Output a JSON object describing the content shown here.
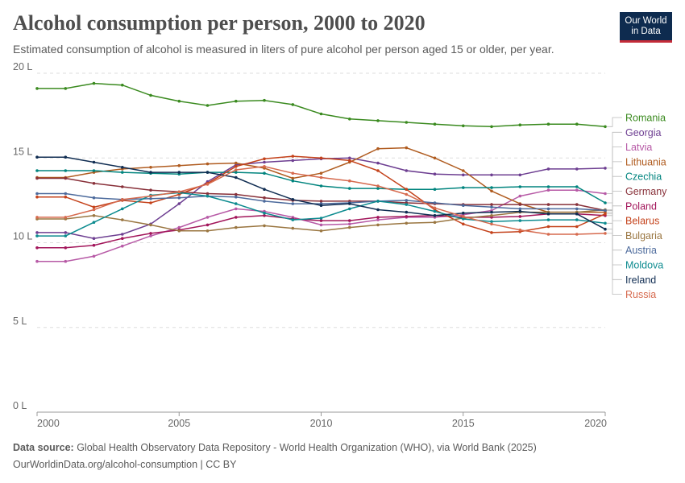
{
  "header": {
    "title": "Alcohol consumption per person, 2000 to 2020",
    "subtitle": "Estimated consumption of alcohol is measured in liters of pure alcohol per person aged 15 or older, per year.",
    "logo_line1": "Our World",
    "logo_line2": "in Data"
  },
  "footer": {
    "source_label": "Data source:",
    "source_text": " Global Health Observatory Data Repository - World Health Organization (WHO), via World Bank (2025)",
    "credit": "OurWorldinData.org/alcohol-consumption | CC BY"
  },
  "colors": {
    "accent": "#c42b39",
    "brand": "#0e2b4f",
    "grid": "#dddddd",
    "axis": "#666666"
  },
  "chart_data": {
    "type": "line",
    "title": "Alcohol consumption per person, 2000 to 2020",
    "ylim": [
      0,
      20
    ],
    "xlim": [
      2000,
      2020
    ],
    "x_ticks": [
      2000,
      2005,
      2010,
      2015,
      2020
    ],
    "y_ticks": [
      {
        "value": 0,
        "label": "0 L"
      },
      {
        "value": 5,
        "label": "5 L"
      },
      {
        "value": 10,
        "label": "10 L"
      },
      {
        "value": 15,
        "label": "15 L"
      },
      {
        "value": 20,
        "label": "20 L"
      }
    ],
    "grid": "horizontal-dashed",
    "legend_placement": "right",
    "x": [
      2000,
      2001,
      2002,
      2003,
      2004,
      2005,
      2006,
      2007,
      2008,
      2009,
      2010,
      2011,
      2012,
      2013,
      2014,
      2015,
      2016,
      2017,
      2018,
      2019,
      2020
    ],
    "series": [
      {
        "name": "Romania",
        "color": "#3a8a1f",
        "values": [
          19.1,
          19.1,
          19.4,
          19.3,
          18.7,
          18.35,
          18.1,
          18.35,
          18.4,
          18.15,
          17.6,
          17.3,
          17.2,
          17.1,
          17.0,
          16.9,
          16.85,
          16.95,
          17.0,
          17.0,
          16.85
        ]
      },
      {
        "name": "Georgia",
        "color": "#6d3e91",
        "values": [
          10.6,
          10.6,
          10.25,
          10.5,
          11.1,
          12.3,
          13.6,
          14.6,
          14.75,
          14.85,
          14.95,
          15.0,
          14.7,
          14.25,
          14.05,
          14.0,
          14.0,
          14.0,
          14.35,
          14.35,
          14.4
        ]
      },
      {
        "name": "Latvia",
        "color": "#b75aa6",
        "values": [
          8.9,
          8.9,
          9.2,
          9.8,
          10.4,
          10.9,
          11.5,
          12.0,
          11.85,
          11.5,
          11.05,
          11.1,
          11.35,
          11.5,
          11.5,
          11.65,
          11.9,
          12.75,
          13.1,
          13.1,
          12.9
        ]
      },
      {
        "name": "Lithuania",
        "color": "#b05c20",
        "values": [
          13.85,
          13.85,
          14.15,
          14.35,
          14.45,
          14.55,
          14.65,
          14.7,
          14.4,
          13.8,
          14.1,
          14.75,
          15.55,
          15.6,
          15.0,
          14.25,
          13.05,
          12.3,
          11.8,
          11.8,
          11.8
        ]
      },
      {
        "name": "Czechia",
        "color": "#00847e",
        "values": [
          14.25,
          14.25,
          14.25,
          14.15,
          14.1,
          14.05,
          14.15,
          14.15,
          14.1,
          13.65,
          13.35,
          13.2,
          13.2,
          13.15,
          13.15,
          13.25,
          13.25,
          13.3,
          13.3,
          13.3,
          12.35
        ]
      },
      {
        "name": "Germany",
        "color": "#883039",
        "values": [
          13.8,
          13.8,
          13.5,
          13.3,
          13.1,
          13.0,
          12.9,
          12.85,
          12.65,
          12.5,
          12.45,
          12.45,
          12.45,
          12.35,
          12.3,
          12.25,
          12.25,
          12.25,
          12.25,
          12.25,
          11.9
        ]
      },
      {
        "name": "Poland",
        "color": "#a2155a",
        "values": [
          9.7,
          9.7,
          9.85,
          10.25,
          10.55,
          10.75,
          11.05,
          11.5,
          11.6,
          11.4,
          11.3,
          11.3,
          11.5,
          11.55,
          11.6,
          11.5,
          11.5,
          11.55,
          11.7,
          11.7,
          11.6
        ]
      },
      {
        "name": "Belarus",
        "color": "#c4421b",
        "values": [
          12.7,
          12.7,
          12.1,
          12.5,
          12.35,
          12.85,
          13.5,
          14.5,
          14.95,
          15.1,
          15.0,
          14.85,
          14.25,
          13.15,
          11.95,
          11.1,
          10.6,
          10.65,
          10.95,
          10.95,
          11.7
        ]
      },
      {
        "name": "Bulgaria",
        "color": "#9a7641",
        "values": [
          11.4,
          11.4,
          11.6,
          11.35,
          11.05,
          10.7,
          10.7,
          10.9,
          11.0,
          10.85,
          10.7,
          10.9,
          11.05,
          11.15,
          11.2,
          11.45,
          11.6,
          11.8,
          11.8,
          11.8,
          11.95
        ]
      },
      {
        "name": "Austria",
        "color": "#4c6a9c",
        "values": [
          12.9,
          12.9,
          12.65,
          12.55,
          12.6,
          12.65,
          12.75,
          12.7,
          12.45,
          12.3,
          12.3,
          12.35,
          12.45,
          12.5,
          12.35,
          12.2,
          12.1,
          12.0,
          12.0,
          12.0,
          11.9
        ]
      },
      {
        "name": "Moldova",
        "color": "#0c8b8f",
        "values": [
          10.4,
          10.4,
          11.2,
          12.0,
          12.8,
          12.95,
          12.75,
          12.3,
          11.75,
          11.35,
          11.45,
          12.0,
          12.45,
          12.25,
          11.85,
          11.4,
          11.25,
          11.3,
          11.35,
          11.35,
          11.15
        ]
      },
      {
        "name": "Ireland",
        "color": "#102d52",
        "values": [
          15.05,
          15.05,
          14.75,
          14.45,
          14.15,
          14.15,
          14.15,
          13.85,
          13.15,
          12.55,
          12.2,
          12.3,
          11.95,
          11.8,
          11.6,
          11.75,
          11.8,
          11.85,
          11.7,
          11.7,
          10.8
        ]
      },
      {
        "name": "Russia",
        "color": "#d66a4e",
        "values": [
          11.5,
          11.5,
          11.95,
          12.55,
          12.75,
          13.0,
          13.45,
          14.3,
          14.5,
          14.1,
          13.85,
          13.65,
          13.35,
          12.85,
          12.05,
          11.55,
          11.1,
          10.75,
          10.5,
          10.5,
          10.55
        ]
      }
    ],
    "legend_order": [
      "Romania",
      "Georgia",
      "Latvia",
      "Lithuania",
      "Czechia",
      "Germany",
      "Poland",
      "Belarus",
      "Bulgaria",
      "Austria",
      "Moldova",
      "Ireland",
      "Russia"
    ]
  }
}
